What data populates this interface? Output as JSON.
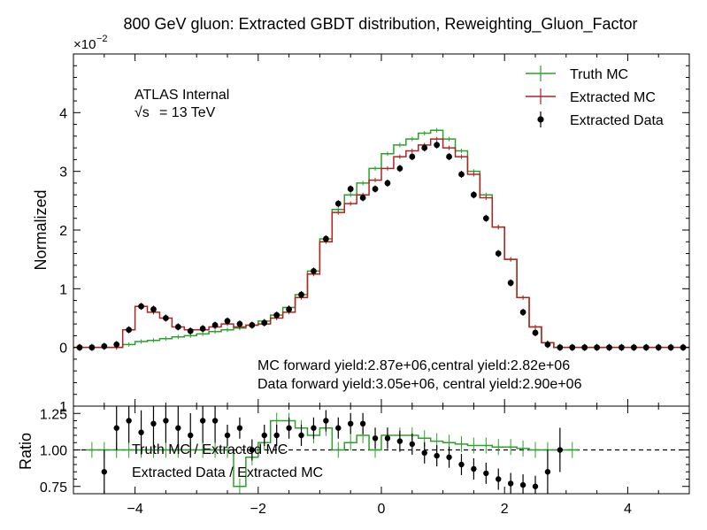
{
  "chart_data": {
    "type": "line",
    "title": "800 GeV gluon: Extracted GBDT distribution, Reweighting_Gluon_Factor",
    "atlas_label": "ATLAS Internal",
    "energy_label_prefix": "√s",
    "energy_label_value": "= 13 TeV",
    "annotation_lines": [
      "MC forward yield:2.87e+06,central yield:2.82e+06",
      "Data forward yield:3.05e+06, central yield:2.90e+06"
    ],
    "colors": {
      "truth": "#2ca02c",
      "extracted": "#b22222",
      "data": "#000000"
    },
    "main_panel": {
      "ylabel": "Normalized",
      "y_multiplier_base": "×10",
      "y_multiplier_exp": "−2",
      "xlim": [
        -5,
        5
      ],
      "ylim": [
        -1,
        5
      ],
      "yticks": [
        0,
        1,
        2,
        3,
        4
      ],
      "ytick_labels": [
        "0",
        "1",
        "2",
        "3",
        "4"
      ],
      "bottom_clipped_label": "1",
      "legend": [
        "Truth MC",
        "Extracted MC",
        "Extracted Data"
      ],
      "legend_position": "top-right"
    },
    "ratio_panel": {
      "ylabel": "Ratio",
      "ylim": [
        0.7,
        1.3
      ],
      "yticks": [
        0.75,
        1.0,
        1.25
      ],
      "ytick_labels": [
        "0.75",
        "1.00",
        "1.25"
      ],
      "reference_line": 1.0,
      "legend": [
        "Truth MC / Extracted MC",
        "Extracted Data / Extracted MC"
      ]
    },
    "xticks": [
      -4,
      -2,
      0,
      2,
      4
    ],
    "xtick_labels": [
      "−4",
      "−2",
      "0",
      "2",
      "4"
    ],
    "bin_edges": [
      -5.0,
      -4.8,
      -4.6,
      -4.4,
      -4.2,
      -4.0,
      -3.8,
      -3.6,
      -3.4,
      -3.2,
      -3.0,
      -2.8,
      -2.6,
      -2.4,
      -2.2,
      -2.0,
      -1.8,
      -1.6,
      -1.4,
      -1.2,
      -1.0,
      -0.8,
      -0.6,
      -0.4,
      -0.2,
      0.0,
      0.2,
      0.4,
      0.6,
      0.8,
      1.0,
      1.2,
      1.4,
      1.6,
      1.8,
      2.0,
      2.2,
      2.4,
      2.6,
      2.8,
      3.0,
      3.2,
      3.4,
      3.6,
      3.8,
      4.0,
      4.2,
      4.4,
      4.6,
      4.8,
      5.0
    ],
    "series": [
      {
        "name": "Truth MC",
        "color": "#2ca02c",
        "style": "step",
        "x": [
          -4.9,
          -4.7,
          -4.5,
          -4.3,
          -4.1,
          -3.9,
          -3.7,
          -3.5,
          -3.3,
          -3.1,
          -2.9,
          -2.7,
          -2.5,
          -2.3,
          -2.1,
          -1.9,
          -1.7,
          -1.5,
          -1.3,
          -1.1,
          -0.9,
          -0.7,
          -0.5,
          -0.3,
          -0.1,
          0.1,
          0.3,
          0.5,
          0.7,
          0.9,
          1.1,
          1.3,
          1.5,
          1.7,
          1.9,
          2.1,
          2.3,
          2.5,
          2.7,
          2.9,
          3.1,
          3.3,
          3.5,
          3.7,
          3.9,
          4.1,
          4.3,
          4.5,
          4.7,
          4.9
        ],
        "y": [
          0.0,
          0.0,
          0.0,
          0.0,
          0.05,
          0.1,
          0.12,
          0.15,
          0.18,
          0.2,
          0.23,
          0.27,
          0.3,
          0.33,
          0.38,
          0.45,
          0.55,
          0.68,
          0.9,
          1.3,
          1.85,
          2.35,
          2.6,
          2.8,
          3.05,
          3.3,
          3.45,
          3.55,
          3.65,
          3.7,
          3.55,
          3.35,
          3.0,
          2.6,
          2.05,
          1.5,
          0.85,
          0.35,
          0.08,
          0.0,
          0.0,
          0.0,
          0.0,
          0.0,
          0.0,
          0.0,
          0.0,
          0.0,
          0.0,
          0.0
        ]
      },
      {
        "name": "Extracted MC",
        "color": "#b22222",
        "style": "step",
        "x": [
          -4.9,
          -4.7,
          -4.5,
          -4.3,
          -4.1,
          -3.9,
          -3.7,
          -3.5,
          -3.3,
          -3.1,
          -2.9,
          -2.7,
          -2.5,
          -2.3,
          -2.1,
          -1.9,
          -1.7,
          -1.5,
          -1.3,
          -1.1,
          -0.9,
          -0.7,
          -0.5,
          -0.3,
          -0.1,
          0.1,
          0.3,
          0.5,
          0.7,
          0.9,
          1.1,
          1.3,
          1.5,
          1.7,
          1.9,
          2.1,
          2.3,
          2.5,
          2.7,
          2.9,
          3.1,
          3.3,
          3.5,
          3.7,
          3.9,
          4.1,
          4.3,
          4.5,
          4.7,
          4.9
        ],
        "y": [
          0.0,
          0.0,
          0.0,
          0.0,
          0.3,
          0.7,
          0.6,
          0.5,
          0.35,
          0.3,
          0.3,
          0.35,
          0.4,
          0.35,
          0.38,
          0.4,
          0.5,
          0.6,
          0.85,
          1.25,
          1.8,
          2.3,
          2.45,
          2.6,
          2.85,
          3.05,
          3.25,
          3.35,
          3.45,
          3.55,
          3.4,
          3.25,
          2.95,
          2.55,
          2.05,
          1.5,
          0.85,
          0.35,
          0.08,
          0.0,
          0.0,
          0.0,
          0.0,
          0.0,
          0.0,
          0.0,
          0.0,
          0.0,
          0.0,
          0.0
        ]
      },
      {
        "name": "Extracted Data",
        "color": "#000000",
        "style": "points",
        "x": [
          -4.9,
          -4.7,
          -4.5,
          -4.3,
          -4.1,
          -3.9,
          -3.7,
          -3.5,
          -3.3,
          -3.1,
          -2.9,
          -2.7,
          -2.5,
          -2.3,
          -2.1,
          -1.9,
          -1.7,
          -1.5,
          -1.3,
          -1.1,
          -0.9,
          -0.7,
          -0.5,
          -0.3,
          -0.1,
          0.1,
          0.3,
          0.5,
          0.7,
          0.9,
          1.1,
          1.3,
          1.5,
          1.7,
          1.9,
          2.1,
          2.3,
          2.5,
          2.7,
          2.9,
          3.1,
          3.3,
          3.5,
          3.7,
          3.9,
          4.1,
          4.3,
          4.5,
          4.7,
          4.9
        ],
        "y": [
          0.0,
          0.0,
          0.02,
          0.05,
          0.3,
          0.7,
          0.65,
          0.5,
          0.35,
          0.28,
          0.32,
          0.38,
          0.45,
          0.4,
          0.38,
          0.42,
          0.55,
          0.65,
          0.9,
          1.3,
          1.85,
          2.45,
          2.7,
          2.55,
          2.7,
          2.8,
          3.05,
          3.25,
          3.4,
          3.45,
          3.25,
          2.95,
          2.6,
          2.2,
          1.6,
          1.1,
          0.6,
          0.25,
          0.05,
          0.0,
          0.0,
          0.0,
          0.0,
          0.0,
          0.0,
          0.0,
          0.0,
          0.0,
          0.0,
          0.0
        ]
      }
    ],
    "ratio_series": [
      {
        "name": "Truth MC / Extracted MC",
        "color": "#2ca02c",
        "style": "step",
        "x": [
          -4.7,
          -4.5,
          -4.3,
          -4.1,
          -3.9,
          -3.7,
          -3.5,
          -3.3,
          -3.1,
          -2.9,
          -2.7,
          -2.5,
          -2.3,
          -2.1,
          -1.9,
          -1.7,
          -1.5,
          -1.3,
          -1.1,
          -0.9,
          -0.7,
          -0.5,
          -0.3,
          -0.1,
          0.1,
          0.3,
          0.5,
          0.7,
          0.9,
          1.1,
          1.3,
          1.5,
          1.7,
          1.9,
          2.1,
          2.3,
          2.5,
          2.7,
          2.9,
          3.1
        ],
        "y": [
          1.0,
          1.0,
          1.0,
          1.0,
          1.0,
          1.0,
          1.0,
          1.0,
          1.0,
          1.0,
          1.0,
          1.0,
          0.75,
          0.95,
          1.05,
          1.2,
          1.2,
          1.15,
          1.1,
          1.15,
          1.0,
          1.05,
          1.1,
          1.0,
          1.1,
          1.1,
          1.1,
          1.08,
          1.06,
          1.05,
          1.04,
          1.03,
          1.03,
          1.02,
          1.02,
          1.01,
          1.0,
          1.0,
          1.0,
          1.0
        ]
      },
      {
        "name": "Extracted Data / Extracted MC",
        "color": "#000000",
        "style": "points",
        "x": [
          -4.5,
          -4.3,
          -4.1,
          -3.9,
          -3.7,
          -3.5,
          -3.3,
          -3.1,
          -2.9,
          -2.7,
          -2.5,
          -2.3,
          -2.1,
          -1.9,
          -1.7,
          -1.5,
          -1.3,
          -1.1,
          -0.9,
          -0.7,
          -0.5,
          -0.3,
          -0.1,
          0.1,
          0.3,
          0.5,
          0.7,
          0.9,
          1.1,
          1.3,
          1.5,
          1.7,
          1.9,
          2.1,
          2.3,
          2.5,
          2.7,
          2.9
        ],
        "y": [
          0.85,
          1.15,
          1.2,
          1.12,
          1.18,
          1.2,
          1.15,
          1.1,
          1.2,
          1.2,
          1.1,
          1.15,
          1.0,
          1.1,
          1.1,
          1.15,
          1.1,
          1.15,
          1.2,
          1.15,
          1.18,
          1.18,
          1.08,
          1.08,
          1.06,
          1.04,
          0.98,
          0.96,
          0.95,
          0.9,
          0.87,
          0.84,
          0.8,
          0.77,
          0.76,
          0.75,
          0.85,
          1.0
        ]
      }
    ]
  }
}
